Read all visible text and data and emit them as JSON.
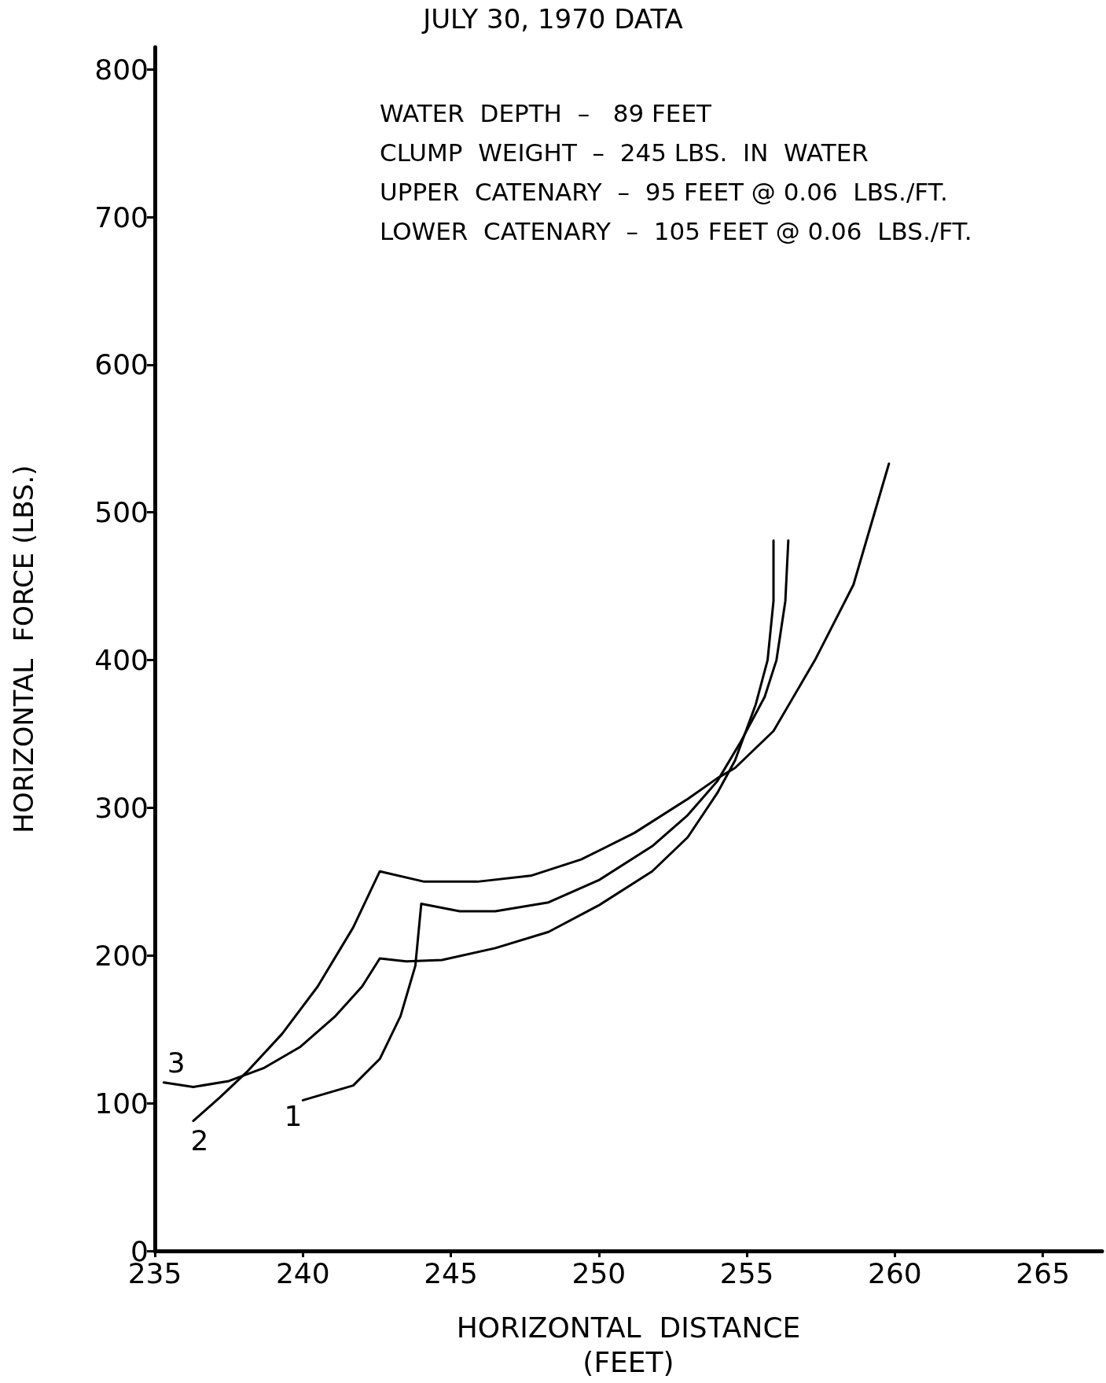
{
  "chart_data": {
    "type": "line",
    "title": "JULY 30, 1970 DATA",
    "xlabel": "HORIZONTAL  DISTANCE\n(FEET)",
    "ylabel": "HORIZONTAL  FORCE (LBS.)",
    "annotations": [
      "WATER  DEPTH  –   89 FEET",
      "CLUMP  WEIGHT  –  245 LBS.  IN  WATER",
      "UPPER  CATENARY  –  95 FEET @ 0.06  LBS./FT.",
      "LOWER  CATENARY  –  105 FEET @ 0.06  LBS./FT."
    ],
    "xlim": [
      235,
      267
    ],
    "xticks": [
      235,
      240,
      245,
      250,
      255,
      260,
      265
    ],
    "ylim": [
      0,
      815
    ],
    "yticks": [
      0,
      100,
      200,
      300,
      400,
      500,
      600,
      700,
      800
    ],
    "grid": false,
    "legend": false,
    "marker": "none",
    "line_style": "solid",
    "series": [
      {
        "name": "3",
        "color": "#000000",
        "x": [
          235.3,
          236.3,
          237.5,
          238.7,
          239.9,
          241.1,
          242.0,
          242.6,
          243.5,
          244.7,
          246.5,
          248.3,
          250.0,
          251.8,
          253.0,
          254.0,
          254.6,
          255.3,
          255.7,
          255.9,
          255.9
        ],
        "values": [
          114,
          111,
          115,
          124,
          138,
          159,
          179,
          198,
          196,
          197,
          205,
          216,
          234,
          257,
          280,
          310,
          332,
          370,
          400,
          440,
          481
        ]
      },
      {
        "name": "2",
        "color": "#000000",
        "x": [
          236.3,
          237.2,
          238.1,
          239.3,
          240.5,
          241.7,
          242.6,
          244.1,
          245.9,
          247.7,
          249.4,
          251.2,
          253.0,
          254.0,
          254.6,
          255.9,
          257.3,
          258.6,
          259.8
        ],
        "values": [
          88,
          104,
          121,
          147,
          179,
          219,
          257,
          250,
          250,
          254,
          265,
          283,
          306,
          320,
          327,
          352,
          400,
          451,
          533
        ]
      },
      {
        "name": "1",
        "color": "#000000",
        "x": [
          240.0,
          241.7,
          242.6,
          243.3,
          243.8,
          244.0,
          245.3,
          246.5,
          248.3,
          250.0,
          251.8,
          253.0,
          254.0,
          254.8,
          255.6,
          256.0,
          256.3,
          256.4
        ],
        "values": [
          102,
          112,
          130,
          159,
          193,
          235,
          230,
          230,
          236,
          251,
          274,
          295,
          318,
          345,
          375,
          400,
          440,
          481
        ]
      }
    ]
  }
}
